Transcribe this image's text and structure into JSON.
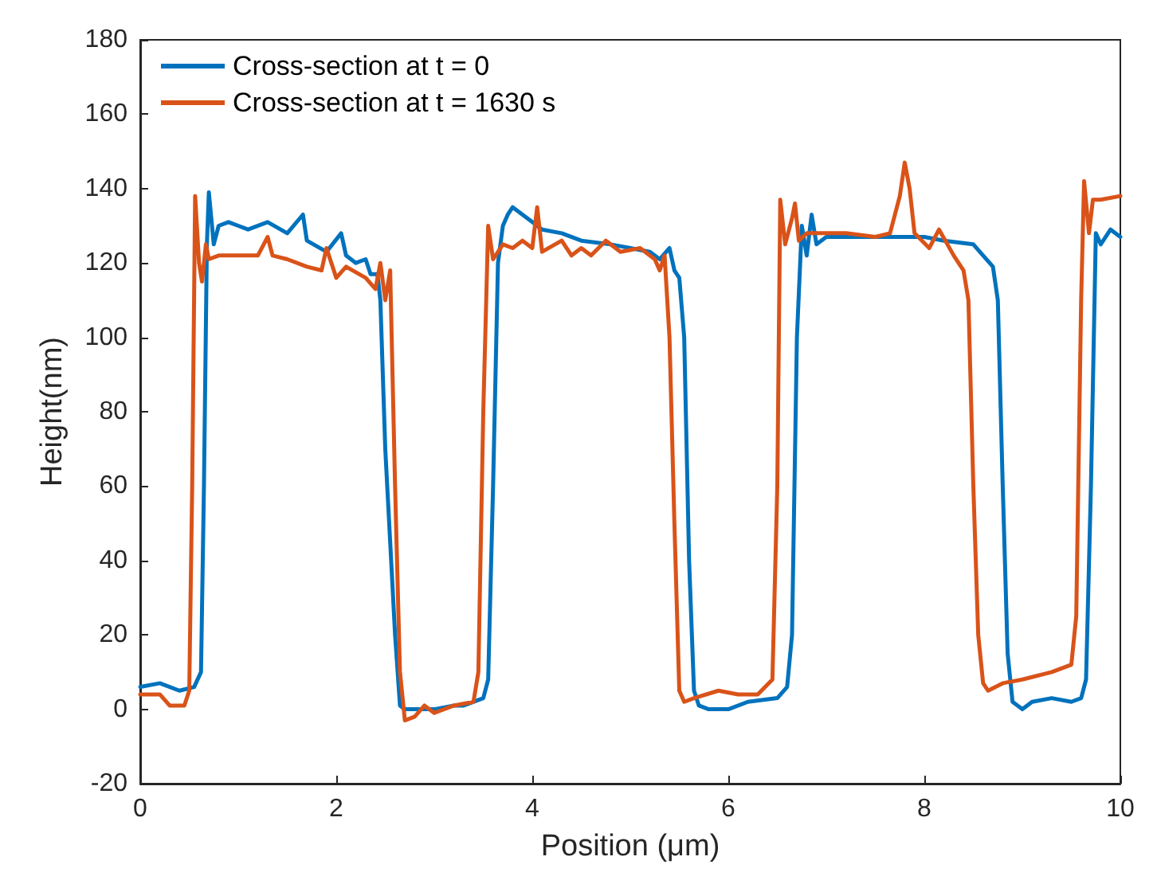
{
  "chart_data": {
    "type": "line",
    "xlabel": "Position (μm)",
    "ylabel": "Height(nm)",
    "xlim": [
      0,
      10
    ],
    "xticks": [
      0,
      2,
      4,
      6,
      8,
      10
    ],
    "ylim": [
      -20,
      180
    ],
    "yticks": [
      -20,
      0,
      20,
      40,
      60,
      80,
      100,
      120,
      140,
      160,
      180
    ],
    "grid": false,
    "legend": "top left",
    "marker": "none",
    "line_style": "solid",
    "series": [
      {
        "name": "Cross-section at t = 0",
        "color": "#0072bd",
        "x": [
          0,
          0.2,
          0.4,
          0.55,
          0.62,
          0.65,
          0.68,
          0.7,
          0.75,
          0.8,
          0.9,
          1.0,
          1.1,
          1.3,
          1.5,
          1.66,
          1.7,
          1.9,
          2.05,
          2.1,
          2.2,
          2.3,
          2.35,
          2.42,
          2.45,
          2.5,
          2.6,
          2.65,
          2.7,
          2.8,
          3.0,
          3.2,
          3.3,
          3.5,
          3.55,
          3.6,
          3.65,
          3.7,
          3.75,
          3.8,
          3.9,
          4.0,
          4.1,
          4.3,
          4.5,
          4.8,
          5.0,
          5.2,
          5.3,
          5.4,
          5.45,
          5.5,
          5.55,
          5.6,
          5.65,
          5.7,
          5.8,
          6.0,
          6.2,
          6.5,
          6.6,
          6.65,
          6.7,
          6.75,
          6.8,
          6.85,
          6.9,
          7.0,
          7.5,
          8.0,
          8.2,
          8.5,
          8.6,
          8.7,
          8.75,
          8.8,
          8.85,
          8.9,
          9.0,
          9.1,
          9.3,
          9.5,
          9.6,
          9.65,
          9.7,
          9.75,
          9.8,
          9.9,
          10
        ],
        "values": [
          6,
          7,
          5,
          6,
          10,
          60,
          125,
          139,
          125,
          130,
          131,
          130,
          129,
          131,
          128,
          133,
          126,
          123,
          128,
          122,
          120,
          121,
          117,
          117,
          110,
          70,
          20,
          1,
          0,
          0,
          0,
          1,
          1,
          3,
          8,
          60,
          120,
          130,
          133,
          135,
          133,
          131,
          129,
          128,
          126,
          125,
          124,
          123,
          121,
          124,
          118,
          116,
          100,
          40,
          5,
          1,
          0,
          0,
          2,
          3,
          6,
          20,
          100,
          130,
          122,
          133,
          125,
          127,
          127,
          127,
          126,
          125,
          122,
          119,
          110,
          60,
          15,
          2,
          0,
          2,
          3,
          2,
          3,
          8,
          60,
          128,
          125,
          129,
          127
        ]
      },
      {
        "name": "Cross-section at t = 1630 s",
        "color": "#d95319",
        "x": [
          0,
          0.2,
          0.3,
          0.45,
          0.5,
          0.53,
          0.56,
          0.6,
          0.63,
          0.67,
          0.7,
          0.8,
          1.0,
          1.2,
          1.3,
          1.35,
          1.5,
          1.7,
          1.85,
          1.9,
          2.0,
          2.1,
          2.3,
          2.4,
          2.45,
          2.5,
          2.55,
          2.6,
          2.65,
          2.7,
          2.8,
          2.9,
          3.0,
          3.2,
          3.4,
          3.45,
          3.5,
          3.55,
          3.6,
          3.7,
          3.8,
          3.9,
          4.0,
          4.05,
          4.1,
          4.3,
          4.4,
          4.5,
          4.6,
          4.75,
          4.9,
          5.1,
          5.25,
          5.3,
          5.35,
          5.4,
          5.45,
          5.5,
          5.55,
          5.65,
          5.9,
          6.1,
          6.3,
          6.45,
          6.5,
          6.53,
          6.58,
          6.65,
          6.68,
          6.72,
          6.8,
          7.2,
          7.5,
          7.65,
          7.75,
          7.8,
          7.85,
          7.9,
          8.05,
          8.15,
          8.3,
          8.4,
          8.45,
          8.5,
          8.55,
          8.6,
          8.65,
          8.8,
          9.0,
          9.3,
          9.5,
          9.55,
          9.6,
          9.63,
          9.68,
          9.72,
          9.8,
          10
        ],
        "values": [
          4,
          4,
          1,
          1,
          5,
          60,
          138,
          120,
          115,
          125,
          121,
          122,
          122,
          122,
          127,
          122,
          121,
          119,
          118,
          124,
          116,
          119,
          116,
          113,
          120,
          110,
          118,
          60,
          10,
          -3,
          -2,
          1,
          -1,
          1,
          2,
          10,
          80,
          130,
          121,
          125,
          124,
          126,
          124,
          135,
          123,
          126,
          122,
          124,
          122,
          126,
          123,
          124,
          121,
          118,
          122,
          100,
          50,
          5,
          2,
          3,
          5,
          4,
          4,
          8,
          60,
          137,
          125,
          132,
          136,
          126,
          128,
          128,
          127,
          128,
          138,
          147,
          140,
          128,
          124,
          129,
          122,
          118,
          110,
          60,
          20,
          7,
          5,
          7,
          8,
          10,
          12,
          25,
          110,
          142,
          128,
          137,
          137,
          138
        ]
      }
    ]
  }
}
